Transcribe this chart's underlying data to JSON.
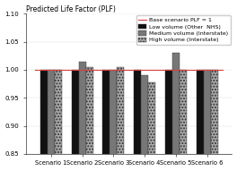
{
  "title": "Predicted Life Factor (PLF)",
  "ylim": [
    0.85,
    1.1
  ],
  "yticks": [
    0.85,
    0.9,
    0.95,
    1.0,
    1.05,
    1.1
  ],
  "scenarios": [
    "Scenario 1",
    "Scenario 2",
    "Scenario 3",
    "Scenario 4",
    "Scenario 5",
    "Scenario 6"
  ],
  "series": [
    {
      "name": "Low volume (Other  NHS)",
      "color": "#111111",
      "hatch": null,
      "values": [
        1.0,
        1.0,
        1.0,
        1.0,
        1.0,
        1.0
      ]
    },
    {
      "name": "Medium volume (Interstate)",
      "color": "#777777",
      "hatch": null,
      "values": [
        1.0,
        1.015,
        1.0,
        0.99,
        1.03,
        1.0
      ]
    },
    {
      "name": "High volume (Interstate)",
      "color": "#aaaaaa",
      "hatch": ".....",
      "values": [
        1.0,
        1.005,
        1.005,
        0.978,
        1.0,
        1.0
      ]
    }
  ],
  "baseline": 1.0,
  "baseline_color": "#d94040",
  "bar_width": 0.23,
  "background_color": "#ffffff",
  "grid_color": "#dddddd",
  "title_fontsize": 5.5,
  "tick_fontsize": 5,
  "xtick_fontsize": 4.8,
  "legend_fontsize": 4.5
}
